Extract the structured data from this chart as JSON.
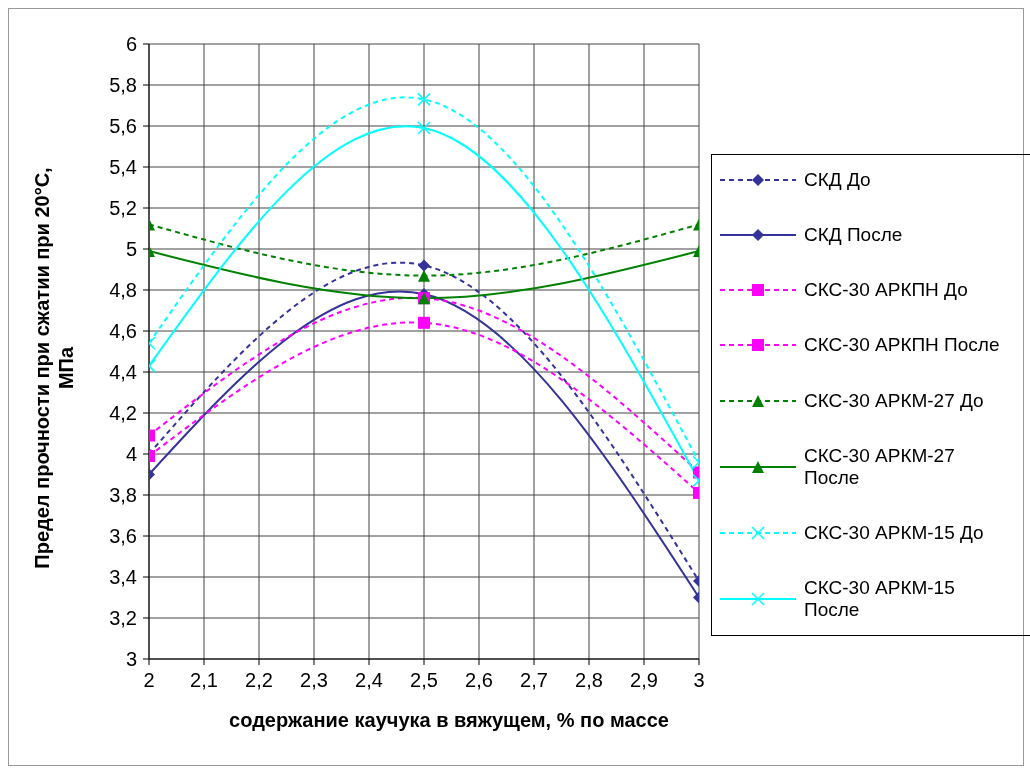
{
  "chart_data": {
    "type": "line",
    "xlabel": "содержание каучука в вяжущем, % по массе",
    "ylabel": "Предел прочности при сжатии при 20°С, МПа",
    "x": [
      2,
      2.5,
      3
    ],
    "xlim": [
      2,
      3
    ],
    "xticks": [
      2,
      {
        "value": 2.1,
        "label": "2,1"
      },
      {
        "value": 2.2,
        "label": "2,2"
      },
      {
        "value": 2.3,
        "label": "2,3"
      },
      {
        "value": 2.4,
        "label": "2,4"
      },
      {
        "value": 2.5,
        "label": "2,5"
      },
      {
        "value": 2.6,
        "label": "2,6"
      },
      {
        "value": 2.7,
        "label": "2,7"
      },
      {
        "value": 2.8,
        "label": "2,8"
      },
      {
        "value": 2.9,
        "label": "2,9"
      },
      3
    ],
    "ylim": [
      3,
      6
    ],
    "yticks": [
      3,
      {
        "value": 3.2,
        "label": "3,2"
      },
      {
        "value": 3.4,
        "label": "3,4"
      },
      {
        "value": 3.6,
        "label": "3,6"
      },
      {
        "value": 3.8,
        "label": "3,8"
      },
      4,
      {
        "value": 4.2,
        "label": "4,2"
      },
      {
        "value": 4.4,
        "label": "4,4"
      },
      {
        "value": 4.6,
        "label": "4,6"
      },
      {
        "value": 4.8,
        "label": "4,8"
      },
      5,
      {
        "value": 5.2,
        "label": "5,2"
      },
      {
        "value": 5.4,
        "label": "5,4"
      },
      {
        "value": 5.6,
        "label": "5,6"
      },
      {
        "value": 5.8,
        "label": "5,8"
      },
      6
    ],
    "grid": true,
    "legend": "right",
    "series": [
      {
        "name": "СКД До",
        "color": "#333399",
        "values": [
          4.0,
          4.92,
          3.38
        ],
        "marker": "diamond",
        "line_style": "dashed"
      },
      {
        "name": "СКД После",
        "color": "#333399",
        "values": [
          3.9,
          4.78,
          3.3
        ],
        "marker": "diamond",
        "line_style": "solid"
      },
      {
        "name": "СКС-30 АРКПН До",
        "color": "#ff00ff",
        "values": [
          4.09,
          4.76,
          3.91
        ],
        "marker": "square",
        "line_style": "dashed"
      },
      {
        "name": "СКС-30 АРКПН После",
        "color": "#ff00ff",
        "values": [
          3.99,
          4.64,
          3.81
        ],
        "marker": "square",
        "line_style": "dashed"
      },
      {
        "name": "СКС-30 АРКМ-27 До",
        "color": "#008000",
        "values": [
          5.12,
          4.87,
          5.12
        ],
        "marker": "triangle",
        "line_style": "dashed"
      },
      {
        "name": "СКС-30 АРКМ-27 После",
        "color": "#008000",
        "values": [
          4.99,
          4.76,
          4.99
        ],
        "marker": "triangle",
        "line_style": "solid"
      },
      {
        "name": "СКС-30 АРКМ-15 До",
        "color": "#00ffff",
        "values": [
          4.54,
          5.73,
          3.96
        ],
        "marker": "cross",
        "line_style": "dashed"
      },
      {
        "name": "СКС-30 АРКМ-15 После",
        "color": "#00ffff",
        "values": [
          4.43,
          5.59,
          3.87
        ],
        "marker": "cross",
        "line_style": "solid"
      }
    ]
  }
}
